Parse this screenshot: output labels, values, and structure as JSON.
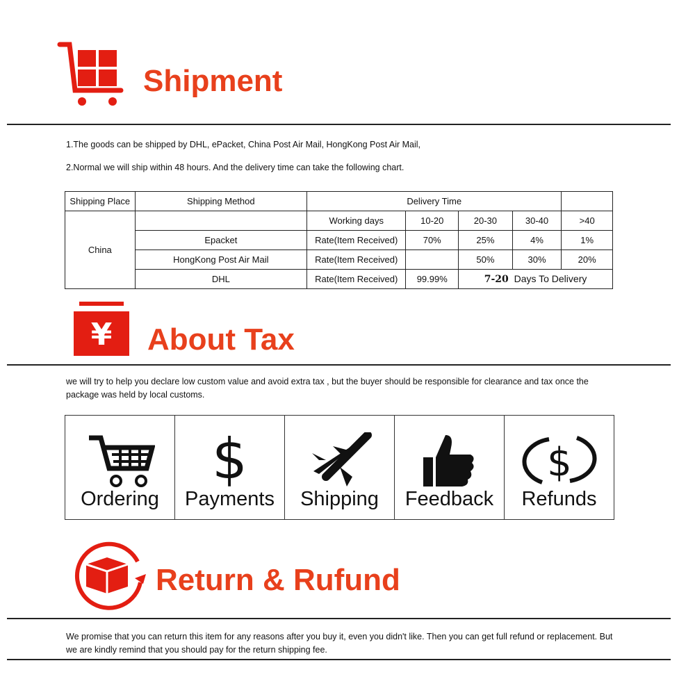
{
  "shipment": {
    "title": "Shipment",
    "icon": "shopping-cart-icon",
    "lines": [
      "1.The goods can be shipped by DHL, ePacket, China Post Air Mail, HongKong Post Air Mail,",
      "2.Normal we will ship within 48 hours. And the delivery time can take the following chart."
    ],
    "table": {
      "headers": [
        "Shipping Place",
        "Shipping Method",
        "Delivery Time"
      ],
      "place": "China",
      "working_days_label": "Working days",
      "day_ranges": [
        "10-20",
        "20-30",
        "30-40",
        ">40"
      ],
      "rows": [
        {
          "method": "Epacket",
          "label": "Rate(Item Received)",
          "values": [
            "70%",
            "25%",
            "4%",
            "1%"
          ]
        },
        {
          "method": "HongKong Post Air Mail",
          "label": "Rate(Item Received)",
          "values": [
            "",
            "50%",
            "30%",
            "20%"
          ]
        },
        {
          "method": "DHL",
          "label": "Rate(Item Received)",
          "first": "99.99%",
          "note_bold": "7-20",
          "note": "Days To Delivery"
        }
      ]
    }
  },
  "tax": {
    "title": "About Tax",
    "icon": "yen-icon",
    "text": "we will try to help you declare low custom value and avoid extra tax , but the buyer should be responsible for clearance and tax once the package was held by local customs."
  },
  "steps": [
    {
      "label": "Ordering",
      "icon": "cart-icon"
    },
    {
      "label": "Payments",
      "icon": "dollar-icon"
    },
    {
      "label": "Shipping",
      "icon": "airplane-icon"
    },
    {
      "label": "Feedback",
      "icon": "thumbs-up-icon"
    },
    {
      "label": "Refunds",
      "icon": "refund-dollar-icon"
    }
  ],
  "returns": {
    "title": "Return & Rufund",
    "icon": "return-box-icon",
    "text": "We promise that you can return this item for any reasons after you buy it, even you didn't like. Then you can get full refund or replacement. But we are kindly remind that you should pay for the return shipping fee."
  },
  "colors": {
    "accent": "#e8401c",
    "icon_red": "#e31e12"
  }
}
